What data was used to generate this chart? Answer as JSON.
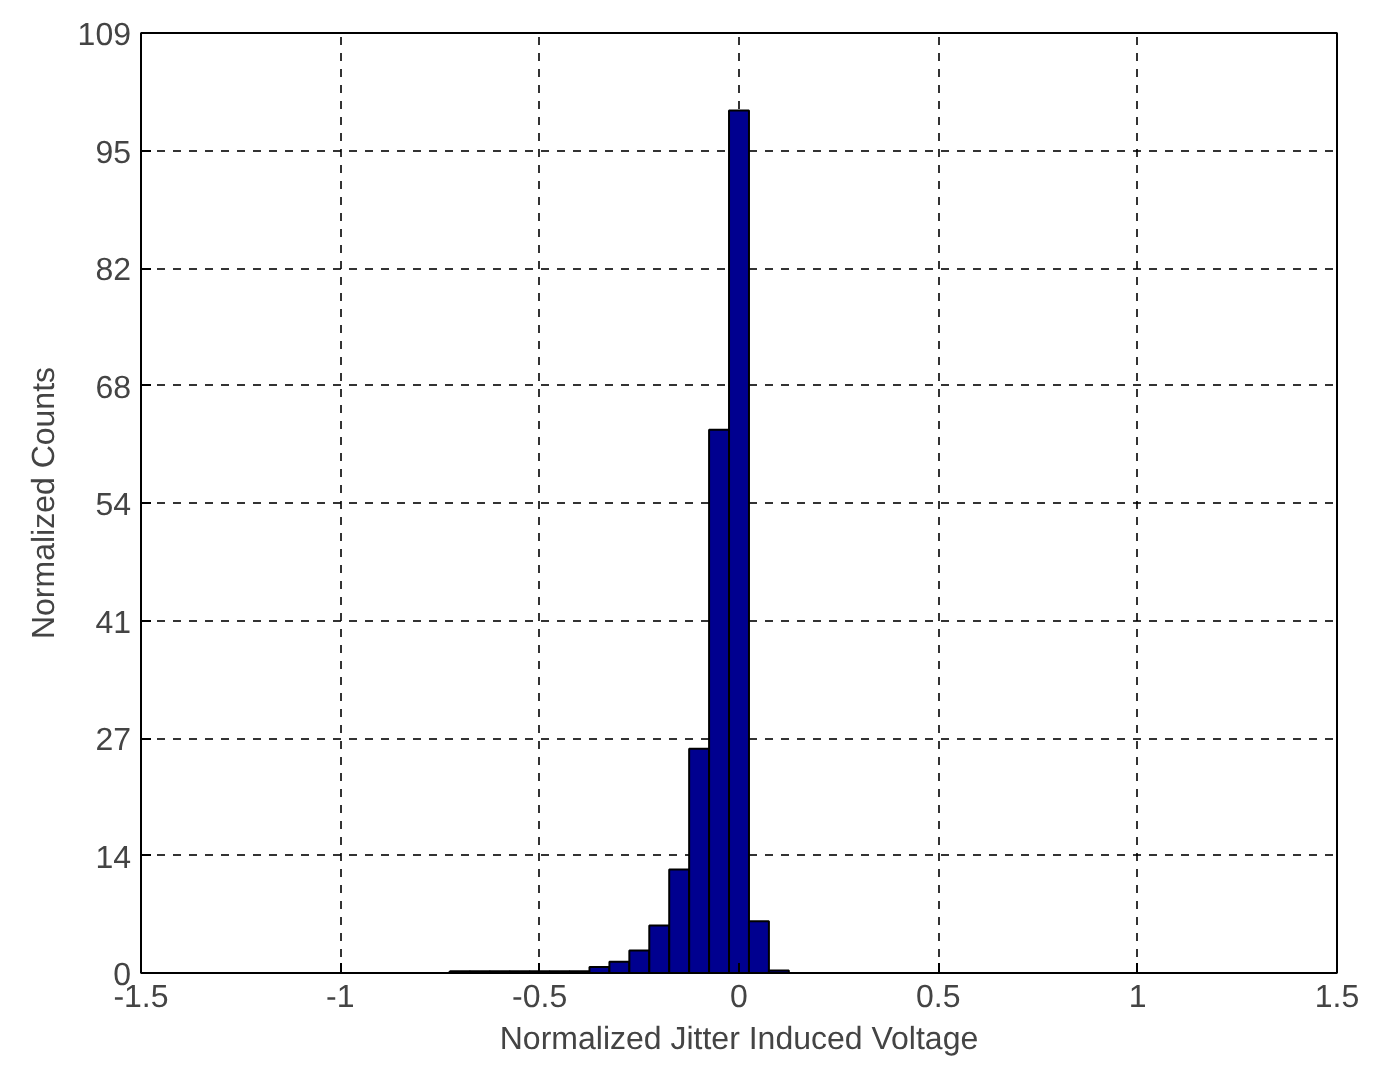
{
  "chart_data": {
    "type": "histogram",
    "xlabel": "Normalized Jitter Induced Voltage",
    "ylabel": "Normalized Counts",
    "bins": [
      -0.725,
      -0.675,
      -0.625,
      -0.575,
      -0.525,
      -0.475,
      -0.425,
      -0.375,
      -0.325,
      -0.275,
      -0.225,
      -0.175,
      -0.125,
      -0.075,
      -0.025,
      0.025,
      0.075,
      0.125
    ],
    "values": [
      0.2,
      0.2,
      0.2,
      0.2,
      0.2,
      0.2,
      0.2,
      0.7,
      1.3,
      2.6,
      5.5,
      12,
      26,
      63,
      100,
      6,
      0.3
    ],
    "color": "#00008f",
    "xlim": [
      -1.5,
      1.5
    ],
    "xticks": [
      -1.5,
      -1,
      -0.5,
      0,
      0.5,
      1,
      1.5
    ],
    "ylim": [
      0,
      109
    ],
    "yticks": [
      0,
      {
        "value": 13.625,
        "label": "14"
      },
      {
        "value": 27.25,
        "label": "27"
      },
      {
        "value": 40.875,
        "label": "41"
      },
      {
        "value": 54.5,
        "label": "54"
      },
      {
        "value": 68.125,
        "label": "68"
      },
      {
        "value": 81.75,
        "label": "82"
      },
      {
        "value": 95.375,
        "label": "95"
      },
      109
    ],
    "grid": true
  }
}
